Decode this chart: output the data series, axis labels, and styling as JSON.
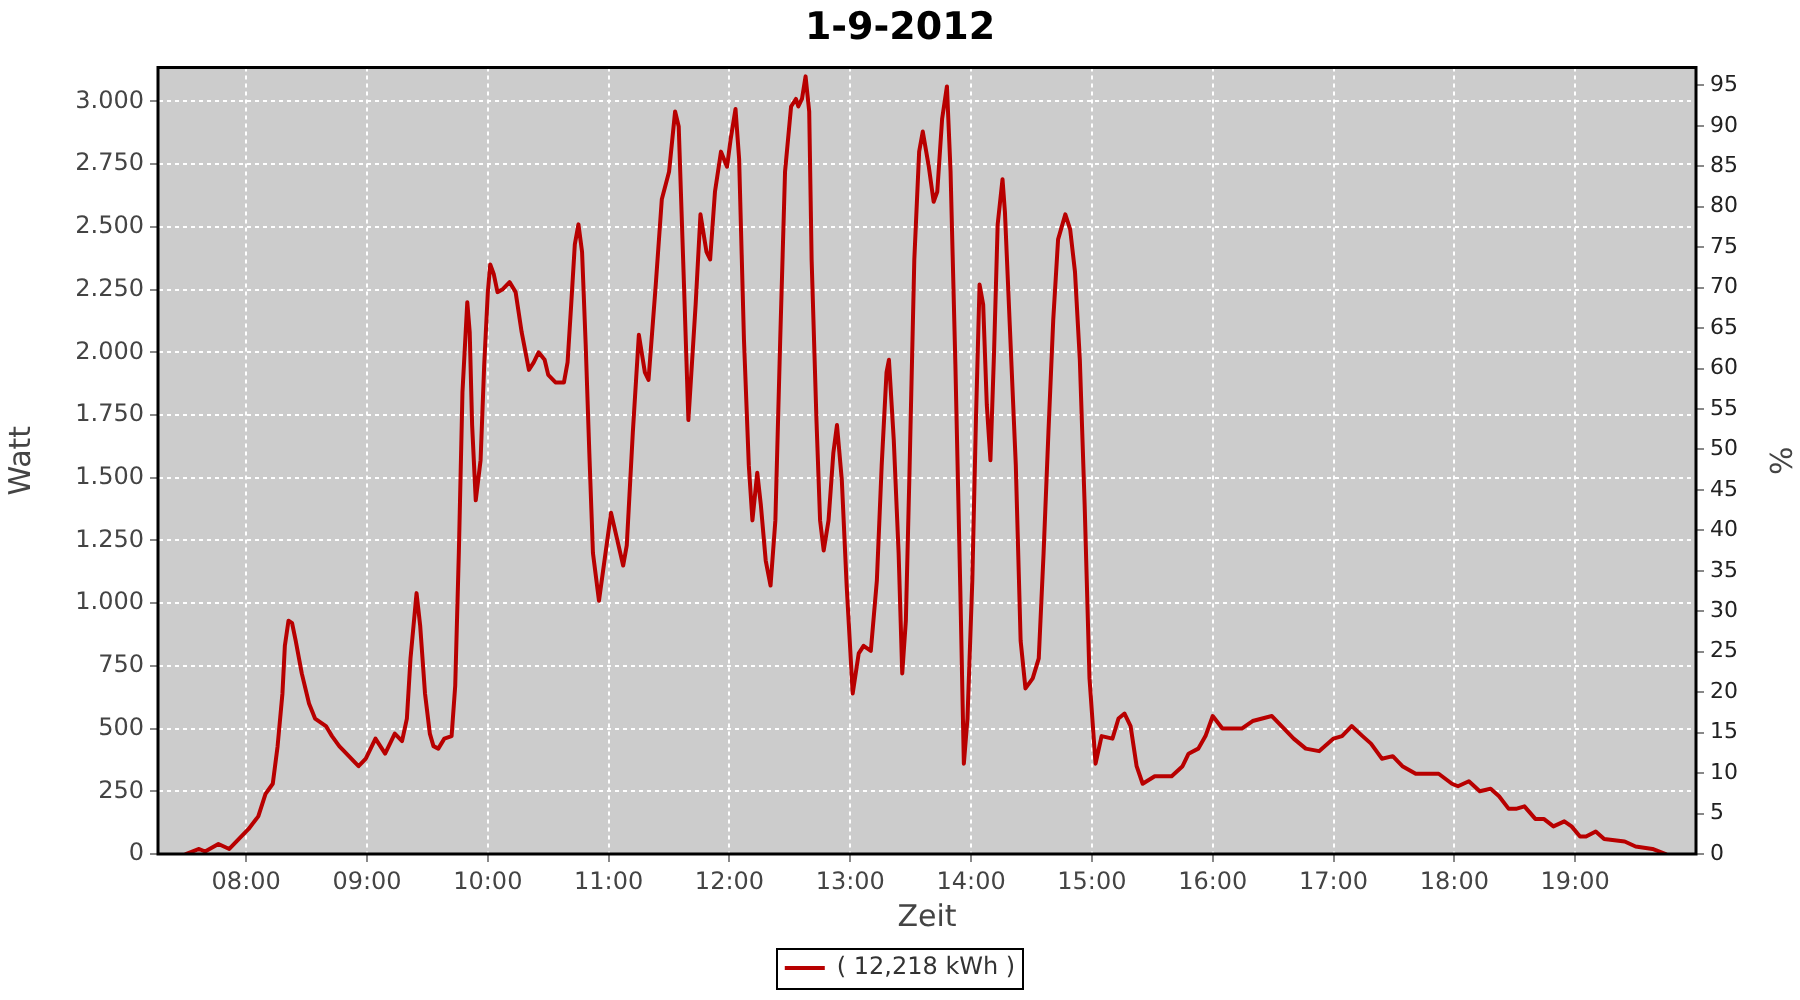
{
  "chart_data": {
    "type": "line",
    "title": "1-9-2012",
    "xlabel": "Zeit",
    "ylabel": "Watt",
    "y2label": "%",
    "x": [
      7.5,
      7.61,
      7.66,
      7.77,
      7.86,
      7.94,
      8.02,
      8.1,
      8.16,
      8.22,
      8.26,
      8.3,
      8.32,
      8.35,
      8.38,
      8.41,
      8.46,
      8.52,
      8.57,
      8.66,
      8.71,
      8.77,
      8.85,
      8.93,
      8.99,
      9.07,
      9.15,
      9.23,
      9.29,
      9.33,
      9.36,
      9.41,
      9.44,
      9.48,
      9.52,
      9.55,
      9.59,
      9.64,
      9.7,
      9.73,
      9.76,
      9.79,
      9.83,
      9.85,
      9.87,
      9.9,
      9.94,
      9.97,
      10.0,
      10.02,
      10.05,
      10.08,
      10.12,
      10.18,
      10.23,
      10.28,
      10.34,
      10.38,
      10.42,
      10.47,
      10.5,
      10.56,
      10.63,
      10.66,
      10.69,
      10.72,
      10.75,
      10.78,
      10.81,
      10.84,
      10.87,
      10.92,
      11.02,
      11.12,
      11.15,
      11.2,
      11.25,
      11.3,
      11.33,
      11.39,
      11.44,
      11.5,
      11.55,
      11.58,
      11.62,
      11.66,
      11.72,
      11.76,
      11.81,
      11.84,
      11.88,
      11.93,
      11.98,
      12.01,
      12.05,
      12.08,
      12.12,
      12.16,
      12.19,
      12.23,
      12.26,
      12.3,
      12.34,
      12.38,
      12.42,
      12.46,
      12.51,
      12.55,
      12.57,
      12.6,
      12.63,
      12.66,
      12.68,
      12.72,
      12.75,
      12.78,
      12.82,
      12.86,
      12.89,
      12.93,
      12.97,
      13.02,
      13.07,
      13.11,
      13.17,
      13.22,
      13.26,
      13.3,
      13.32,
      13.36,
      13.4,
      13.43,
      13.46,
      13.49,
      13.53,
      13.57,
      13.6,
      13.65,
      13.69,
      13.72,
      13.76,
      13.8,
      13.83,
      13.87,
      13.91,
      13.94,
      13.97,
      14.01,
      14.04,
      14.07,
      14.1,
      14.13,
      14.16,
      14.19,
      14.22,
      14.26,
      14.28,
      14.32,
      14.37,
      14.41,
      14.45,
      14.51,
      14.56,
      14.6,
      14.64,
      14.68,
      14.72,
      14.78,
      14.82,
      14.86,
      14.9,
      14.94,
      14.98,
      15.03,
      15.08,
      15.17,
      15.22,
      15.27,
      15.32,
      15.37,
      15.42,
      15.52,
      15.66,
      15.75,
      15.8,
      15.88,
      15.94,
      16.0,
      16.08,
      16.24,
      16.33,
      16.41,
      16.49,
      16.57,
      16.67,
      16.77,
      16.88,
      17.0,
      17.07,
      17.15,
      17.24,
      17.31,
      17.4,
      17.49,
      17.57,
      17.68,
      17.87,
      17.98,
      18.03,
      18.12,
      18.21,
      18.3,
      18.37,
      18.45,
      18.51,
      18.58,
      18.67,
      18.74,
      18.82,
      18.91,
      18.97,
      19.04,
      19.09,
      19.17,
      19.24,
      19.41,
      19.5,
      19.64,
      19.75
    ],
    "series": [
      {
        "name": "( 12,218 kWh )",
        "color": "#b80000",
        "values": [
          0,
          20,
          10,
          40,
          20,
          60,
          100,
          150,
          240,
          280,
          430,
          640,
          830,
          930,
          920,
          850,
          720,
          600,
          540,
          510,
          470,
          430,
          390,
          350,
          380,
          460,
          400,
          480,
          450,
          540,
          780,
          1040,
          910,
          640,
          480,
          430,
          420,
          460,
          470,
          670,
          1200,
          1840,
          2200,
          2080,
          1710,
          1410,
          1570,
          1950,
          2240,
          2350,
          2310,
          2240,
          2250,
          2280,
          2240,
          2080,
          1930,
          1960,
          2000,
          1970,
          1910,
          1880,
          1880,
          1960,
          2190,
          2430,
          2510,
          2400,
          2030,
          1600,
          1200,
          1010,
          1360,
          1150,
          1230,
          1680,
          2070,
          1920,
          1890,
          2270,
          2610,
          2720,
          2960,
          2900,
          2320,
          1730,
          2190,
          2550,
          2400,
          2370,
          2640,
          2800,
          2740,
          2850,
          2970,
          2770,
          2050,
          1550,
          1330,
          1520,
          1390,
          1170,
          1070,
          1330,
          2050,
          2720,
          2980,
          3010,
          2980,
          3010,
          3100,
          2960,
          2370,
          1730,
          1330,
          1210,
          1330,
          1600,
          1710,
          1490,
          1070,
          640,
          800,
          830,
          810,
          1090,
          1550,
          1920,
          1970,
          1650,
          1200,
          720,
          930,
          1520,
          2370,
          2800,
          2880,
          2740,
          2600,
          2640,
          2930,
          3060,
          2720,
          1950,
          1070,
          360,
          540,
          1090,
          1730,
          2270,
          2190,
          1790,
          1570,
          2000,
          2510,
          2690,
          2560,
          2110,
          1550,
          850,
          660,
          700,
          780,
          1200,
          1680,
          2130,
          2450,
          2550,
          2490,
          2320,
          1970,
          1390,
          700,
          360,
          470,
          460,
          540,
          560,
          510,
          350,
          280,
          310,
          310,
          350,
          400,
          420,
          470,
          550,
          500,
          500,
          530,
          540,
          550,
          510,
          460,
          420,
          410,
          460,
          470,
          510,
          470,
          440,
          380,
          390,
          350,
          320,
          320,
          280,
          270,
          290,
          250,
          260,
          230,
          180,
          180,
          190,
          140,
          140,
          110,
          130,
          110,
          70,
          70,
          90,
          60,
          50,
          30,
          20,
          0
        ]
      }
    ],
    "xlim": [
      7.27,
      20
    ],
    "ylim": [
      0,
      3135
    ],
    "y2lim": [
      0,
      97.2
    ],
    "xticks": [
      {
        "value": 8,
        "label": "08:00"
      },
      {
        "value": 9,
        "label": "09:00"
      },
      {
        "value": 10,
        "label": "10:00"
      },
      {
        "value": 11,
        "label": "11:00"
      },
      {
        "value": 12,
        "label": "12:00"
      },
      {
        "value": 13,
        "label": "13:00"
      },
      {
        "value": 14,
        "label": "14:00"
      },
      {
        "value": 15,
        "label": "15:00"
      },
      {
        "value": 16,
        "label": "16:00"
      },
      {
        "value": 17,
        "label": "17:00"
      },
      {
        "value": 18,
        "label": "18:00"
      },
      {
        "value": 19,
        "label": "19:00"
      }
    ],
    "yticks": [
      0,
      250,
      500,
      750,
      {
        "value": 1000,
        "label": "1.000"
      },
      {
        "value": 1250,
        "label": "1.250"
      },
      {
        "value": 1500,
        "label": "1.500"
      },
      {
        "value": 1750,
        "label": "1.750"
      },
      {
        "value": 2000,
        "label": "2.000"
      },
      {
        "value": 2250,
        "label": "2.250"
      },
      {
        "value": 2500,
        "label": "2.500"
      },
      {
        "value": 2750,
        "label": "2.750"
      },
      {
        "value": 3000,
        "label": "3.000"
      }
    ],
    "y2ticks": [
      0,
      5,
      10,
      15,
      20,
      25,
      30,
      35,
      40,
      45,
      50,
      55,
      60,
      65,
      70,
      75,
      80,
      85,
      90,
      95
    ],
    "grid": true,
    "legend": "bottom",
    "line_style": "solid"
  }
}
